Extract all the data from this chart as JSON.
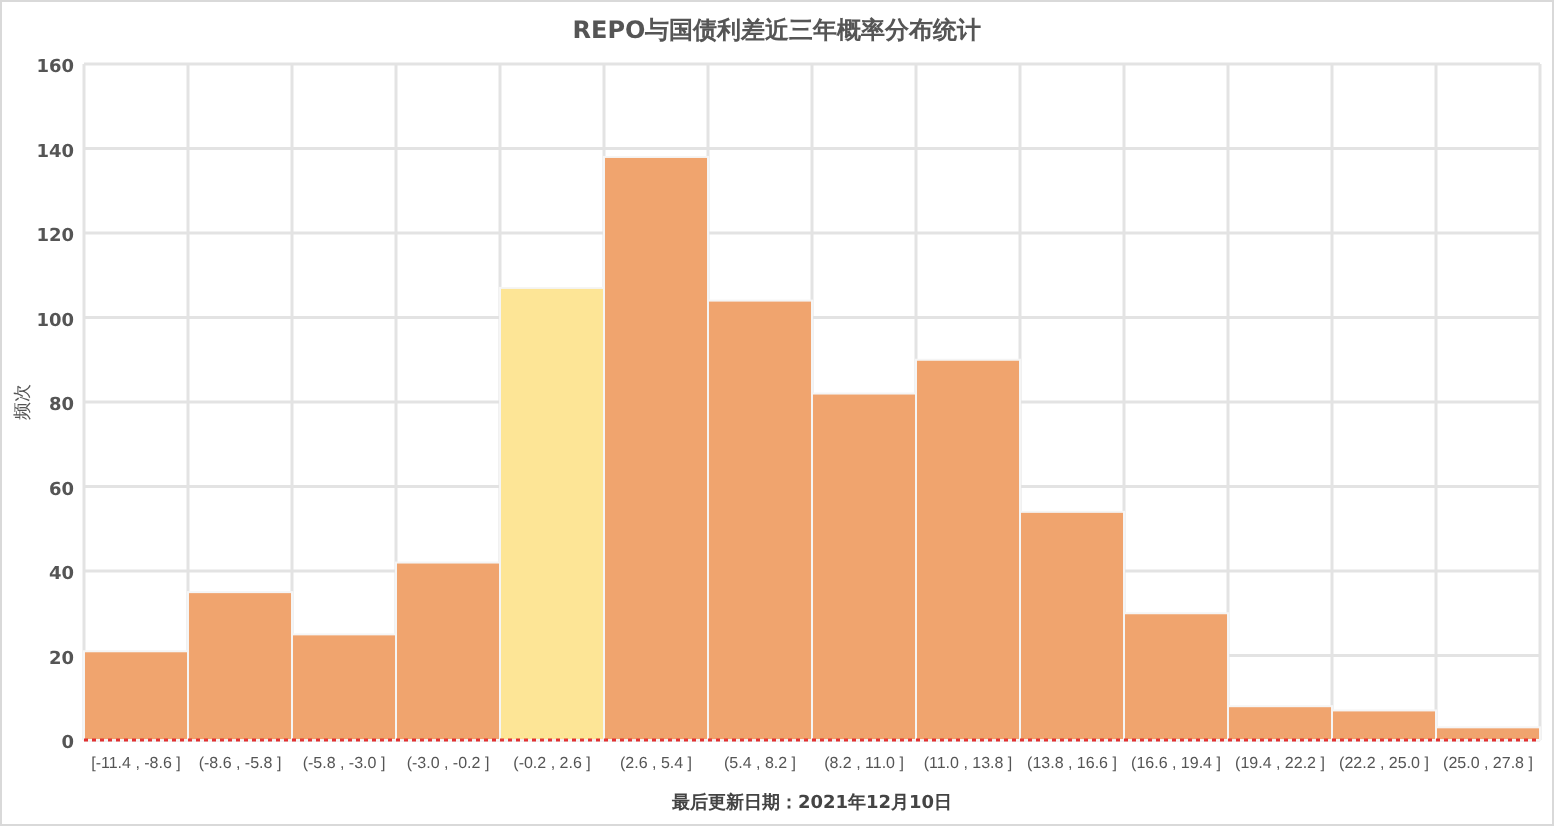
{
  "chart_data": {
    "type": "bar",
    "title": "REPO与国债利差近三年概率分布统计",
    "ylabel": "频次",
    "annotations": [
      "最后更新日期：2021年12月10日"
    ],
    "categories": [
      "[-11.4 , -8.6 ]",
      "(-8.6 , -5.8 ]",
      "(-5.8 , -3.0 ]",
      "(-3.0 , -0.2 ]",
      "(-0.2 , 2.6 ]",
      "(2.6 , 5.4 ]",
      "(5.4 , 8.2 ]",
      "(8.2 , 11.0 ]",
      "(11.0 , 13.8 ]",
      "(13.8 , 16.6 ]",
      "(16.6 , 19.4 ]",
      "(19.4 , 22.2 ]",
      "(22.2 , 25.0 ]",
      "(25.0 , 27.8 ]"
    ],
    "values": [
      21,
      35,
      25,
      42,
      107,
      138,
      104,
      82,
      90,
      54,
      30,
      8,
      7,
      3
    ],
    "colors": [
      "#f0a46e",
      "#f0a46e",
      "#f0a46e",
      "#f0a46e",
      "#fde596",
      "#f0a46e",
      "#f0a46e",
      "#f0a46e",
      "#f0a46e",
      "#f0a46e",
      "#f0a46e",
      "#f0a46e",
      "#f0a46e",
      "#f0a46e"
    ],
    "ylim": [
      0,
      160
    ],
    "yticks": [
      0,
      20,
      40,
      60,
      80,
      100,
      120,
      140,
      160
    ],
    "grid": true,
    "ref_lines": [
      {
        "axis": "y",
        "value": 0,
        "color": "#e03030",
        "line_style": "dotted"
      }
    ]
  }
}
